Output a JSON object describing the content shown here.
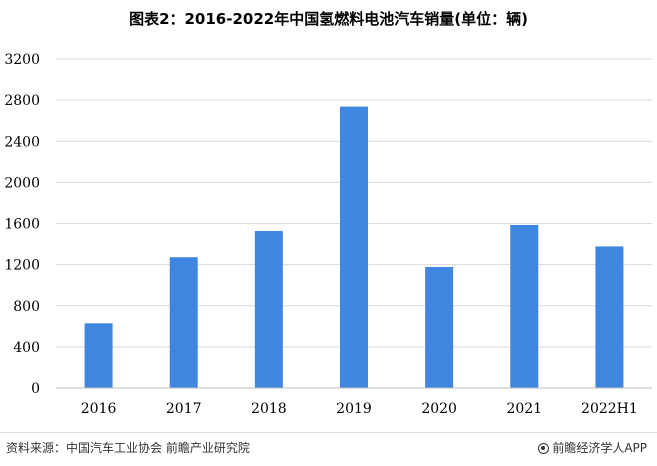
{
  "chart_data": {
    "type": "bar",
    "title": "图表2：2016-2022年中国氢燃料电池汽车销量(单位：辆)",
    "categories": [
      "2016",
      "2017",
      "2018",
      "2019",
      "2020",
      "2021",
      "2022H1"
    ],
    "series": [
      {
        "values": [
          629,
          1272,
          1527,
          2737,
          1177,
          1586,
          1377
        ]
      }
    ],
    "xlabel": "",
    "ylabel": "",
    "ylim": [
      0,
      3200
    ],
    "yticks": [
      0,
      400,
      800,
      1200,
      1600,
      2000,
      2400,
      2800,
      3200
    ],
    "grid": "horizontal",
    "legend": "none",
    "bar_color": "#3e86e0",
    "grid_color": "#d9d9d9"
  },
  "footer": {
    "source": "资料来源：中国汽车工业协会 前瞻产业研究院",
    "brand": "前瞻经济学人APP"
  }
}
